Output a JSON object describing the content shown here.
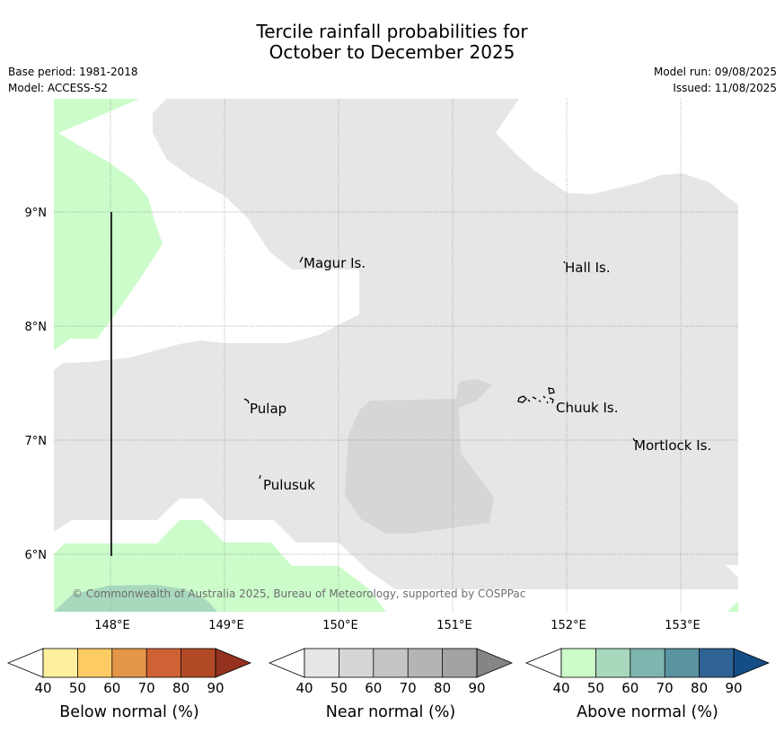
{
  "title": {
    "line1": "Tercile rainfall probabilities for",
    "line2": "October to December 2025"
  },
  "meta": {
    "base_period": "Base period: 1981-2018",
    "model": "Model: ACCESS-S2",
    "model_run": "Model run: 09/08/2025",
    "issued": "Issued: 11/08/2025"
  },
  "map": {
    "lon_labels": [
      "148°E",
      "149°E",
      "150°E",
      "151°E",
      "152°E",
      "153°E"
    ],
    "lat_labels": [
      "9°N",
      "8°N",
      "7°N",
      "6°N"
    ],
    "places": [
      {
        "id": "magur",
        "name": "Magur Is."
      },
      {
        "id": "hall",
        "name": "Hall Is."
      },
      {
        "id": "pulap",
        "name": "Pulap"
      },
      {
        "id": "chuuk",
        "name": "Chuuk Is."
      },
      {
        "id": "mortlock",
        "name": "Mortlock Is."
      },
      {
        "id": "pulusuk",
        "name": "Pulusuk"
      }
    ],
    "copyright": "© Commonwealth of Australia 2025, Bureau of Meteorology, supported by COSPPac"
  },
  "colorbars": [
    {
      "id": "below",
      "label": "Below normal (%)",
      "ticks": [
        "40",
        "50",
        "60",
        "70",
        "80",
        "90"
      ],
      "colors": [
        "#fff0a0",
        "#fecb64",
        "#e39648",
        "#cf6234",
        "#b14926",
        "#94311f"
      ]
    },
    {
      "id": "near",
      "label": "Near normal (%)",
      "ticks": [
        "40",
        "50",
        "60",
        "70",
        "80",
        "90"
      ],
      "colors": [
        "#e6e6e6",
        "#d6d6d6",
        "#c5c5c5",
        "#b4b4b4",
        "#a3a3a3",
        "#858585"
      ]
    },
    {
      "id": "above",
      "label": "Above normal (%)",
      "ticks": [
        "40",
        "50",
        "60",
        "70",
        "80",
        "90"
      ],
      "colors": [
        "#cbfcca",
        "#a8d9bd",
        "#7eb5ae",
        "#5b94a1",
        "#306395",
        "#154d86"
      ]
    }
  ],
  "fill_colors": {
    "near_40_50": "#e6e6e6",
    "near_50_60": "#d6d6d6",
    "above_40_50": "#cbfcca",
    "above_50_60": "#a8d9bd"
  }
}
